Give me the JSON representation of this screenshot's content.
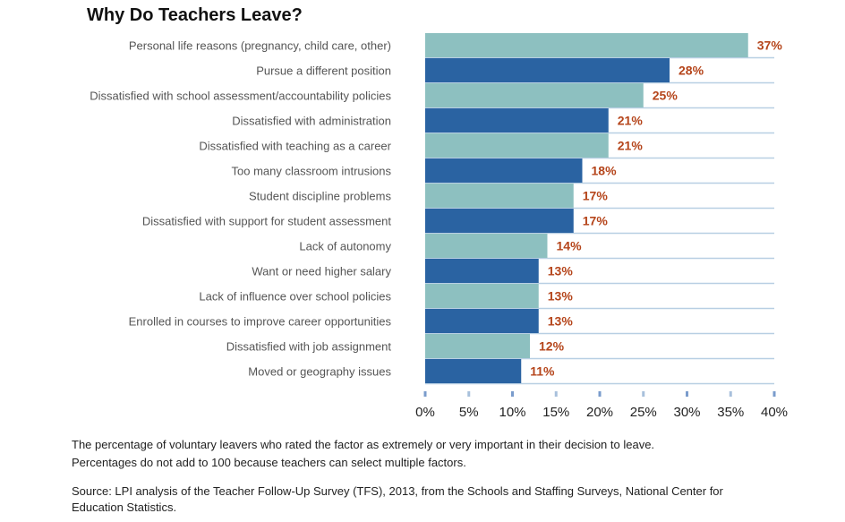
{
  "chart_data": {
    "type": "bar",
    "orientation": "horizontal",
    "title": "Why Do Teachers Leave?",
    "categories": [
      "Personal life reasons (pregnancy, child care, other)",
      "Pursue a different position",
      "Dissatisfied with school assessment/accountability policies",
      "Dissatisfied with administration",
      "Dissatisfied with teaching as a career",
      "Too many classroom intrusions",
      "Student discipline problems",
      "Dissatisfied with support for student assessment",
      "Lack of autonomy",
      "Want or need higher salary",
      "Lack of influence over school policies",
      "Enrolled in courses to improve career opportunities",
      "Dissatisfied with job assignment",
      "Moved or geography issues"
    ],
    "values": [
      37,
      28,
      25,
      21,
      21,
      18,
      17,
      17,
      14,
      13,
      13,
      13,
      12,
      11
    ],
    "value_labels": [
      "37%",
      "28%",
      "25%",
      "21%",
      "21%",
      "18%",
      "17%",
      "17%",
      "14%",
      "13%",
      "13%",
      "13%",
      "12%",
      "11%"
    ],
    "xlim": [
      0,
      40
    ],
    "xticks": [
      "0%",
      "5%",
      "10%",
      "15%",
      "20%",
      "25%",
      "30%",
      "35%",
      "40%"
    ],
    "xlabel": "",
    "ylabel": "",
    "colors": {
      "light": "#8dc0c0",
      "dark": "#2a63a2",
      "label": "#b5451b",
      "row_line": "#b8cfe3"
    }
  },
  "notes": {
    "line1": "The percentage of voluntary leavers who rated the factor as extremely or very important in their decision to leave.",
    "line2": "Percentages do not add to 100 because teachers can select multiple factors.",
    "source1": "Source: LPI analysis of the Teacher Follow-Up Survey (TFS), 2013, from the Schools and Staffing Surveys, National Center for",
    "source2": "Education Statistics."
  }
}
